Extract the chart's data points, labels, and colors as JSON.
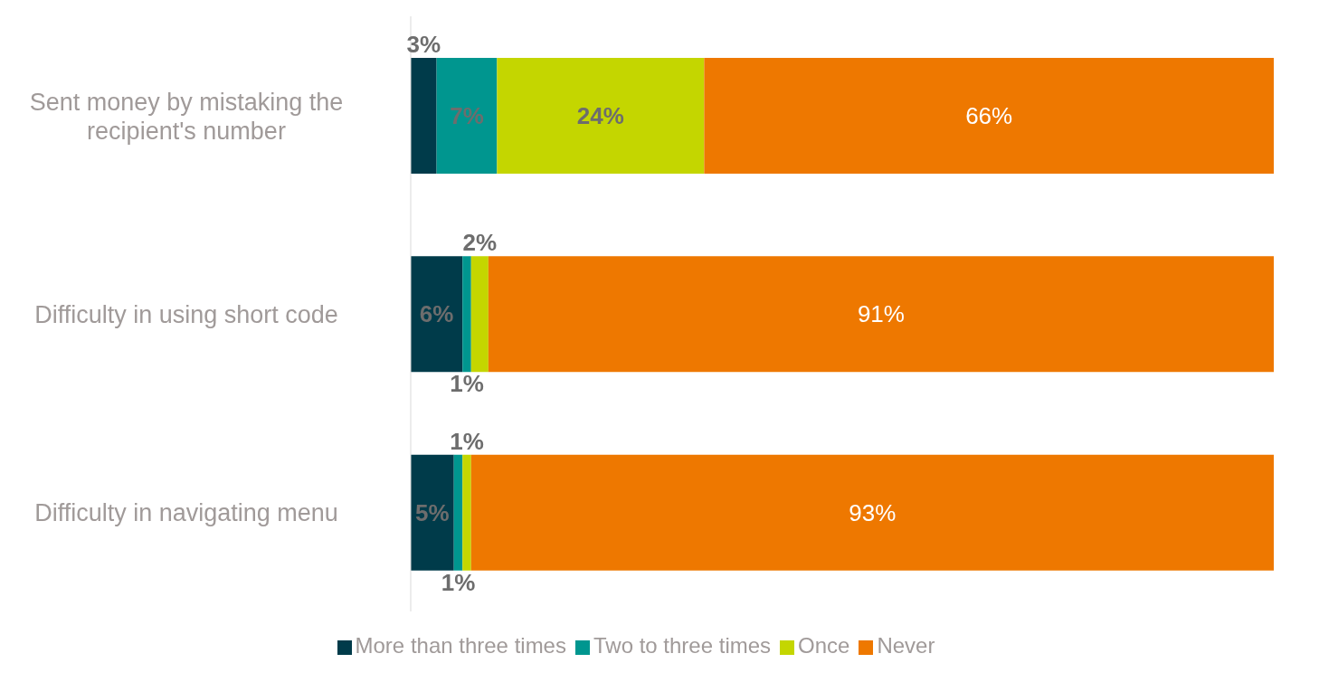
{
  "chart_data": {
    "type": "bar",
    "orientation": "horizontal",
    "stacked": true,
    "categories": [
      "Sent money by mistaking the recipient's number",
      "Difficulty in using short code",
      "Difficulty in navigating menu"
    ],
    "series": [
      {
        "name": "More than  three times",
        "color": "#003b4a",
        "values": [
          3,
          6,
          5
        ],
        "value_labels": [
          "3%",
          "6%",
          "5%"
        ]
      },
      {
        "name": "Two to three times",
        "color": "#00968f",
        "values": [
          7,
          1,
          1
        ],
        "value_labels": [
          "7%",
          "1%",
          "1%"
        ]
      },
      {
        "name": "Once",
        "color": "#c4d600",
        "values": [
          24,
          2,
          1
        ],
        "value_labels": [
          "24%",
          "2%",
          "1%"
        ]
      },
      {
        "name": "Never",
        "color": "#ee7800",
        "values": [
          66,
          91,
          93
        ],
        "value_labels": [
          "66%",
          "91%",
          "93%"
        ]
      }
    ],
    "legend": "bottom",
    "grid": false
  }
}
